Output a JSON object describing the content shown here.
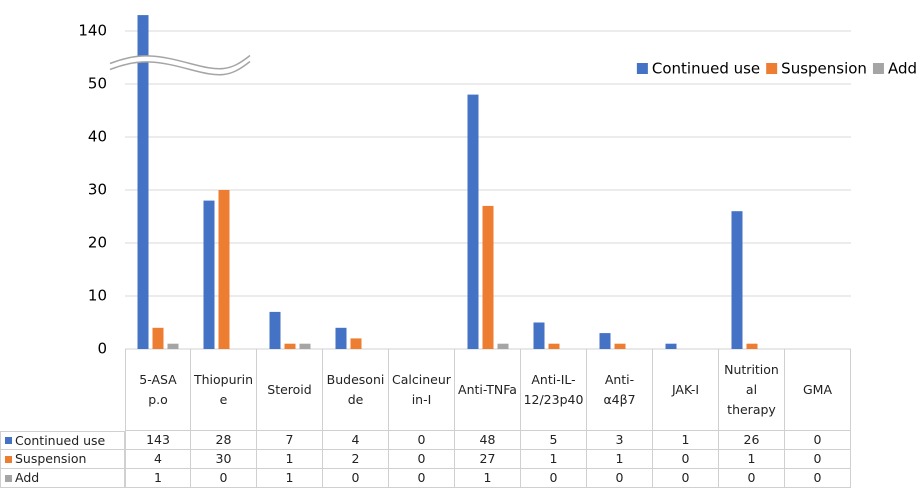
{
  "chart_data": {
    "type": "bar",
    "categories": [
      "5-ASA p.o",
      "Thiopurine",
      "Steroid",
      "Budesonide",
      "Calcineurin-I",
      "Anti-TNFa",
      "Anti-IL-12/23p40",
      "Anti-α4β7",
      "JAK-I",
      "Nutritional therapy",
      "GMA"
    ],
    "series": [
      {
        "name": "Continued use",
        "color": "#4472c4",
        "values": [
          143,
          28,
          7,
          4,
          0,
          48,
          5,
          3,
          1,
          26,
          0
        ]
      },
      {
        "name": "Suspension",
        "color": "#ed7d31",
        "values": [
          4,
          30,
          1,
          2,
          0,
          27,
          1,
          1,
          0,
          1,
          0
        ]
      },
      {
        "name": "Add",
        "color": "#a5a5a5",
        "values": [
          1,
          0,
          1,
          0,
          0,
          1,
          0,
          0,
          0,
          0,
          0
        ]
      }
    ],
    "ylim": [
      0,
      145
    ],
    "yticks": [
      0,
      10,
      20,
      30,
      40,
      50,
      140
    ],
    "y_break": [
      55,
      135
    ],
    "grid": true,
    "legend": "top-right",
    "data_table": true
  }
}
